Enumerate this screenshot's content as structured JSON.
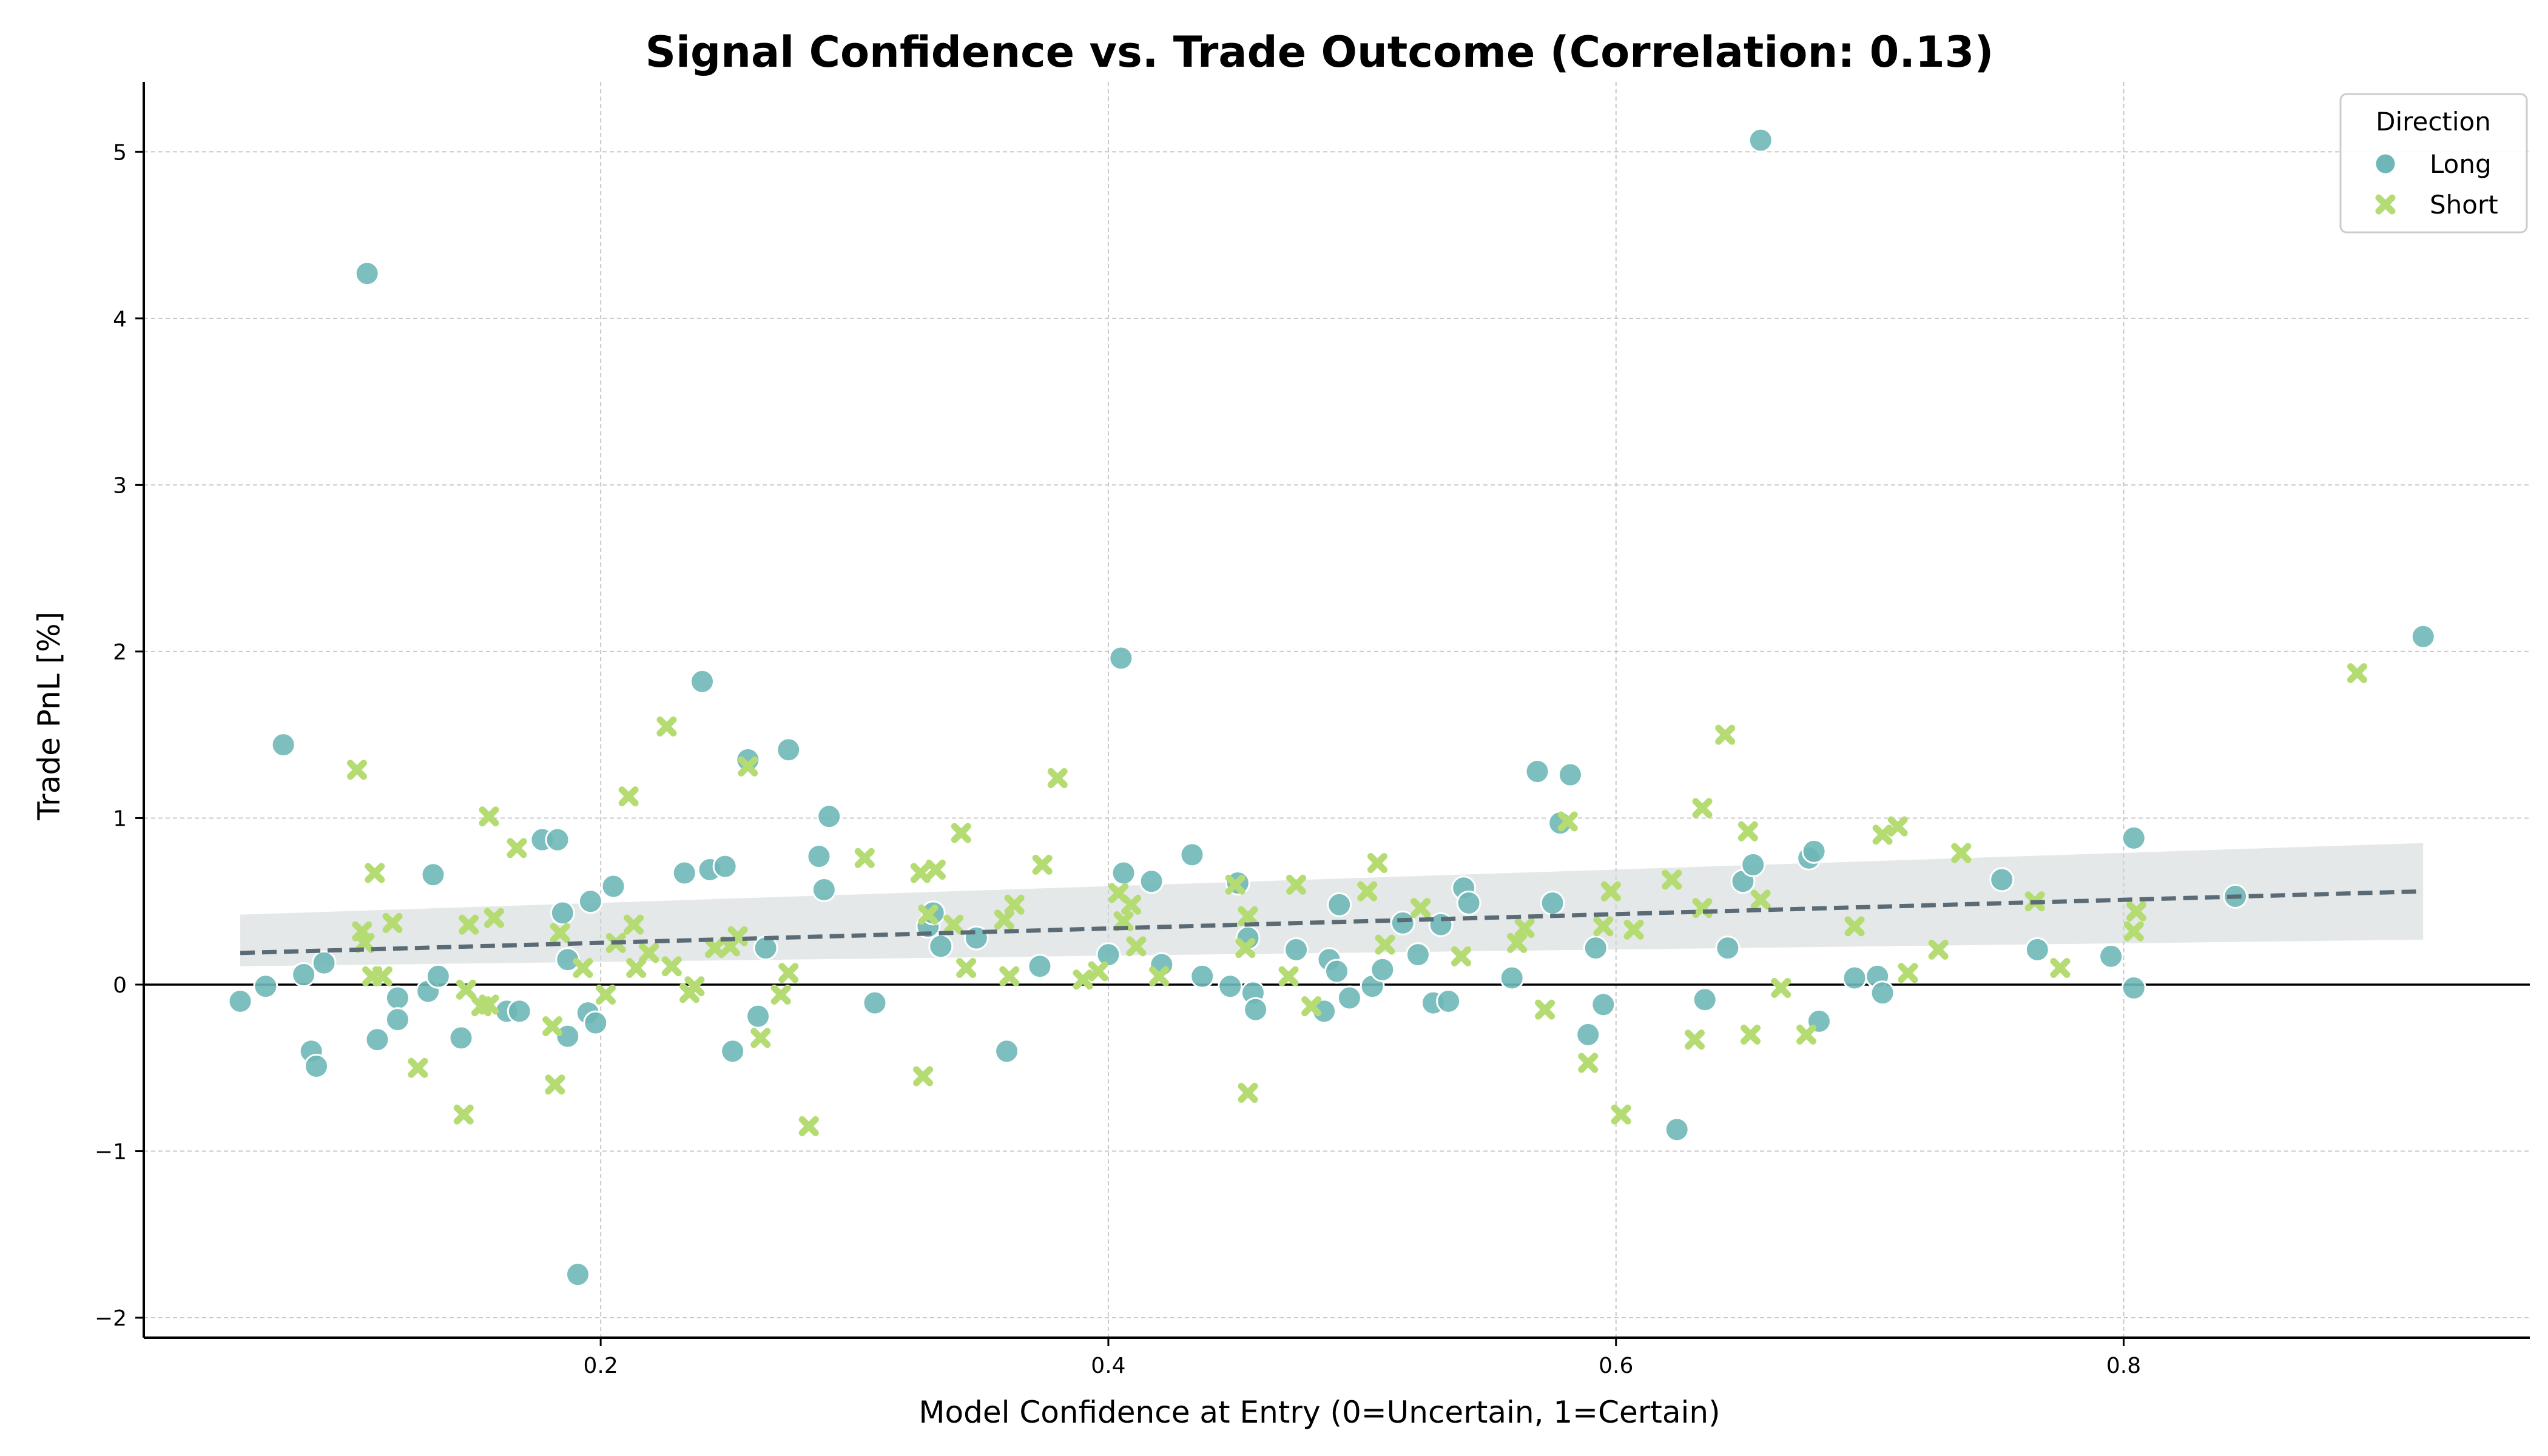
{
  "chart_data": {
    "type": "scatter",
    "title": "Signal Confidence vs. Trade Outcome (Correlation: 0.13)",
    "xlabel": "Model Confidence at Entry (0=Uncertain, 1=Certain)",
    "ylabel": "Trade PnL [%]",
    "xlim": [
      0.02,
      0.96
    ],
    "ylim": [
      -2.12,
      5.42
    ],
    "xticks": [
      0.2,
      0.4,
      0.6,
      0.8
    ],
    "xtick_labels": [
      "0.2",
      "0.4",
      "0.6",
      "0.8"
    ],
    "yticks": [
      -2,
      -1,
      0,
      1,
      2,
      3,
      4,
      5
    ],
    "ytick_labels": [
      "−2",
      "−1",
      "0",
      "1",
      "2",
      "3",
      "4",
      "5"
    ],
    "grid": true,
    "zero_line": true,
    "legend": {
      "title": "Direction",
      "placement": "top-right"
    },
    "colors": {
      "Long": "#6fb7b7",
      "Short": "#b5dc73",
      "trend": "#5a6b75",
      "band": "#cfd6d6"
    },
    "trend": {
      "x": [
        0.058,
        0.918
      ],
      "y": [
        0.19,
        0.56
      ],
      "band_low": [
        0.11,
        0.27
      ],
      "band_high": [
        0.42,
        0.85
      ]
    },
    "series": [
      {
        "name": "Long",
        "marker": "circle",
        "points": [
          [
            0.058,
            -0.1
          ],
          [
            0.068,
            -0.01
          ],
          [
            0.075,
            1.44
          ],
          [
            0.083,
            0.06
          ],
          [
            0.086,
            -0.4
          ],
          [
            0.088,
            -0.49
          ],
          [
            0.091,
            0.13
          ],
          [
            0.108,
            4.27
          ],
          [
            0.112,
            -0.33
          ],
          [
            0.12,
            -0.08
          ],
          [
            0.12,
            -0.21
          ],
          [
            0.132,
            -0.04
          ],
          [
            0.134,
            0.66
          ],
          [
            0.136,
            0.05
          ],
          [
            0.145,
            -0.32
          ],
          [
            0.163,
            -0.16
          ],
          [
            0.168,
            -0.16
          ],
          [
            0.177,
            0.87
          ],
          [
            0.183,
            0.87
          ],
          [
            0.185,
            0.43
          ],
          [
            0.187,
            -0.31
          ],
          [
            0.187,
            0.15
          ],
          [
            0.191,
            -1.74
          ],
          [
            0.195,
            -0.17
          ],
          [
            0.196,
            0.5
          ],
          [
            0.198,
            -0.23
          ],
          [
            0.205,
            0.59
          ],
          [
            0.233,
            0.67
          ],
          [
            0.24,
            1.82
          ],
          [
            0.243,
            0.69
          ],
          [
            0.249,
            0.71
          ],
          [
            0.252,
            -0.4
          ],
          [
            0.258,
            1.35
          ],
          [
            0.262,
            -0.19
          ],
          [
            0.265,
            0.22
          ],
          [
            0.274,
            1.41
          ],
          [
            0.286,
            0.77
          ],
          [
            0.288,
            0.57
          ],
          [
            0.29,
            1.01
          ],
          [
            0.308,
            -0.11
          ],
          [
            0.329,
            0.35
          ],
          [
            0.331,
            0.43
          ],
          [
            0.334,
            0.23
          ],
          [
            0.348,
            0.28
          ],
          [
            0.36,
            -0.4
          ],
          [
            0.373,
            0.11
          ],
          [
            0.4,
            0.18
          ],
          [
            0.405,
            1.96
          ],
          [
            0.406,
            0.67
          ],
          [
            0.417,
            0.62
          ],
          [
            0.421,
            0.12
          ],
          [
            0.433,
            0.78
          ],
          [
            0.437,
            0.05
          ],
          [
            0.448,
            -0.01
          ],
          [
            0.451,
            0.61
          ],
          [
            0.455,
            0.28
          ],
          [
            0.457,
            -0.05
          ],
          [
            0.458,
            -0.15
          ],
          [
            0.474,
            0.21
          ],
          [
            0.485,
            -0.16
          ],
          [
            0.487,
            0.15
          ],
          [
            0.49,
            0.08
          ],
          [
            0.491,
            0.48
          ],
          [
            0.495,
            -0.08
          ],
          [
            0.504,
            -0.01
          ],
          [
            0.508,
            0.09
          ],
          [
            0.516,
            0.37
          ],
          [
            0.522,
            0.18
          ],
          [
            0.528,
            -0.11
          ],
          [
            0.531,
            0.36
          ],
          [
            0.534,
            -0.1
          ],
          [
            0.54,
            0.58
          ],
          [
            0.542,
            0.49
          ],
          [
            0.559,
            0.04
          ],
          [
            0.569,
            1.28
          ],
          [
            0.575,
            0.49
          ],
          [
            0.578,
            0.97
          ],
          [
            0.582,
            1.26
          ],
          [
            0.589,
            -0.3
          ],
          [
            0.592,
            0.22
          ],
          [
            0.595,
            -0.12
          ],
          [
            0.624,
            -0.87
          ],
          [
            0.635,
            -0.09
          ],
          [
            0.644,
            0.22
          ],
          [
            0.65,
            0.62
          ],
          [
            0.654,
            0.72
          ],
          [
            0.657,
            5.07
          ],
          [
            0.676,
            0.76
          ],
          [
            0.678,
            0.8
          ],
          [
            0.68,
            -0.22
          ],
          [
            0.694,
            0.04
          ],
          [
            0.703,
            0.05
          ],
          [
            0.705,
            -0.05
          ],
          [
            0.752,
            0.63
          ],
          [
            0.766,
            0.21
          ],
          [
            0.795,
            0.17
          ],
          [
            0.804,
            0.88
          ],
          [
            0.804,
            -0.02
          ],
          [
            0.844,
            0.53
          ],
          [
            0.918,
            2.09
          ]
        ]
      },
      {
        "name": "Short",
        "marker": "x",
        "points": [
          [
            0.104,
            1.29
          ],
          [
            0.106,
            0.32
          ],
          [
            0.107,
            0.25
          ],
          [
            0.11,
            0.05
          ],
          [
            0.111,
            0.67
          ],
          [
            0.114,
            0.05
          ],
          [
            0.118,
            0.37
          ],
          [
            0.128,
            -0.5
          ],
          [
            0.146,
            -0.78
          ],
          [
            0.148,
            0.36
          ],
          [
            0.147,
            -0.03
          ],
          [
            0.153,
            -0.13
          ],
          [
            0.156,
            1.01
          ],
          [
            0.156,
            -0.12
          ],
          [
            0.158,
            0.4
          ],
          [
            0.167,
            0.82
          ],
          [
            0.181,
            -0.25
          ],
          [
            0.182,
            -0.6
          ],
          [
            0.184,
            0.31
          ],
          [
            0.193,
            0.1
          ],
          [
            0.202,
            -0.06
          ],
          [
            0.206,
            0.25
          ],
          [
            0.211,
            1.13
          ],
          [
            0.213,
            0.36
          ],
          [
            0.214,
            0.1
          ],
          [
            0.219,
            0.19
          ],
          [
            0.226,
            1.55
          ],
          [
            0.228,
            0.11
          ],
          [
            0.235,
            -0.05
          ],
          [
            0.237,
            -0.01
          ],
          [
            0.245,
            0.22
          ],
          [
            0.251,
            0.23
          ],
          [
            0.254,
            0.29
          ],
          [
            0.258,
            1.31
          ],
          [
            0.263,
            -0.32
          ],
          [
            0.271,
            -0.06
          ],
          [
            0.274,
            0.07
          ],
          [
            0.282,
            -0.85
          ],
          [
            0.304,
            0.76
          ],
          [
            0.326,
            0.67
          ],
          [
            0.327,
            -0.55
          ],
          [
            0.329,
            0.42
          ],
          [
            0.332,
            0.69
          ],
          [
            0.339,
            0.36
          ],
          [
            0.342,
            0.91
          ],
          [
            0.344,
            0.1
          ],
          [
            0.359,
            0.39
          ],
          [
            0.361,
            0.05
          ],
          [
            0.363,
            0.48
          ],
          [
            0.374,
            0.72
          ],
          [
            0.38,
            1.24
          ],
          [
            0.39,
            0.03
          ],
          [
            0.396,
            0.08
          ],
          [
            0.404,
            0.55
          ],
          [
            0.406,
            0.38
          ],
          [
            0.409,
            0.48
          ],
          [
            0.411,
            0.23
          ],
          [
            0.42,
            0.05
          ],
          [
            0.45,
            0.6
          ],
          [
            0.454,
            0.22
          ],
          [
            0.455,
            0.41
          ],
          [
            0.455,
            -0.65
          ],
          [
            0.471,
            0.05
          ],
          [
            0.474,
            0.6
          ],
          [
            0.48,
            -0.13
          ],
          [
            0.502,
            0.56
          ],
          [
            0.506,
            0.73
          ],
          [
            0.509,
            0.24
          ],
          [
            0.523,
            0.46
          ],
          [
            0.539,
            0.17
          ],
          [
            0.561,
            0.25
          ],
          [
            0.564,
            0.34
          ],
          [
            0.572,
            -0.15
          ],
          [
            0.581,
            0.98
          ],
          [
            0.589,
            -0.47
          ],
          [
            0.595,
            0.35
          ],
          [
            0.598,
            0.56
          ],
          [
            0.602,
            -0.78
          ],
          [
            0.607,
            0.33
          ],
          [
            0.622,
            0.63
          ],
          [
            0.631,
            -0.33
          ],
          [
            0.634,
            0.46
          ],
          [
            0.634,
            1.06
          ],
          [
            0.643,
            1.5
          ],
          [
            0.652,
            0.92
          ],
          [
            0.653,
            -0.3
          ],
          [
            0.657,
            0.51
          ],
          [
            0.665,
            -0.02
          ],
          [
            0.675,
            -0.3
          ],
          [
            0.694,
            0.35
          ],
          [
            0.705,
            0.9
          ],
          [
            0.711,
            0.95
          ],
          [
            0.715,
            0.07
          ],
          [
            0.727,
            0.21
          ],
          [
            0.736,
            0.79
          ],
          [
            0.765,
            0.5
          ],
          [
            0.775,
            0.1
          ],
          [
            0.804,
            0.32
          ],
          [
            0.805,
            0.44
          ],
          [
            0.892,
            1.87
          ]
        ]
      }
    ]
  }
}
